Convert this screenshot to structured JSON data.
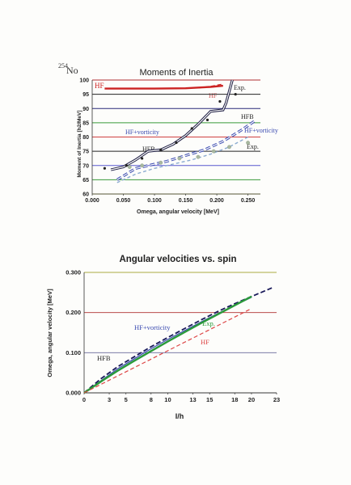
{
  "nucleus_label": {
    "mass": "254",
    "symbol": "No"
  },
  "chart_data": [
    {
      "type": "line",
      "title": "Moments of Inertia",
      "xlabel": "Omega, angular velocity [MeV]",
      "ylabel": "Moment of Inertia [h2/MeV]",
      "xlim": [
        0.0,
        0.27
      ],
      "ylim": [
        60,
        100
      ],
      "xticks": [
        "0.000",
        "0.050",
        "0.100",
        "0.150",
        "0.200",
        "0.250"
      ],
      "yticks": [
        "60",
        "65",
        "70",
        "75",
        "80",
        "85",
        "90",
        "95",
        "100"
      ],
      "gridline_colors": [
        "#c8c840",
        "#3a9a3a",
        "#5a5ad0",
        "#222222",
        "#d04040",
        "#3a9a3a",
        "#2a2a7a",
        "#222222",
        "#b03030"
      ],
      "series": [
        {
          "name": "HF",
          "color": "#cc2222",
          "style": "solid-thick",
          "x": [
            0.02,
            0.06,
            0.1,
            0.15,
            0.19,
            0.21
          ],
          "y": [
            97.0,
            97.0,
            97.0,
            97.1,
            97.6,
            98.0
          ]
        },
        {
          "name": "HF",
          "color": "#cc2222",
          "style": "dashed",
          "x": [
            0.17,
            0.19,
            0.21
          ],
          "y": [
            97.2,
            97.8,
            98.6
          ]
        },
        {
          "name": "HFB",
          "color": "#1a1a40",
          "style": "double",
          "x": [
            0.03,
            0.05,
            0.07,
            0.09,
            0.11,
            0.13,
            0.15,
            0.17,
            0.19,
            0.21,
            0.215,
            0.225
          ],
          "y": [
            68.5,
            69.5,
            72.0,
            75.0,
            75.5,
            77.5,
            80.5,
            84.5,
            89.0,
            89.5,
            92.0,
            100.0
          ]
        },
        {
          "name": "HF+vorticity",
          "color": "#3a4ab0",
          "style": "dashed-double",
          "x": [
            0.04,
            0.07,
            0.09,
            0.12,
            0.15,
            0.18,
            0.21,
            0.24,
            0.26
          ],
          "y": [
            65.0,
            69.0,
            70.0,
            71.5,
            73.5,
            75.5,
            78.5,
            82.5,
            85.5
          ]
        },
        {
          "name": "HFB",
          "color": "#8aaad0",
          "style": "dashed-light",
          "x": [
            0.04,
            0.07,
            0.1,
            0.13,
            0.16,
            0.19,
            0.22,
            0.25
          ],
          "y": [
            64.0,
            67.0,
            69.0,
            70.5,
            72.0,
            74.0,
            76.5,
            80.0
          ]
        },
        {
          "name": "Exp.",
          "color": "#222222",
          "style": "points",
          "x": [
            0.02,
            0.055,
            0.08,
            0.11,
            0.135,
            0.16,
            0.185,
            0.205,
            0.23
          ],
          "y": [
            69.0,
            70.0,
            72.5,
            75.5,
            78.0,
            83.0,
            86.0,
            92.5,
            95.0
          ]
        },
        {
          "name": "Exp.",
          "color": "#a8b8a0",
          "style": "points-light",
          "x": [
            0.06,
            0.08,
            0.11,
            0.14,
            0.17,
            0.195,
            0.22,
            0.25
          ],
          "y": [
            69.5,
            70.0,
            71.0,
            72.5,
            73.0,
            75.0,
            76.5,
            78.0
          ]
        }
      ],
      "annotations": {
        "hf_left": "HF",
        "hf_right": "HF",
        "exp_top": "Exp.",
        "hfb_right": "HFB",
        "vort_right": "HF+vorticity",
        "exp_right": "Exp.",
        "vort_mid": "HF+vorticity",
        "hfb_mid": "HFB"
      }
    },
    {
      "type": "line",
      "title": "Angular velocities vs. spin",
      "xlabel": "I/h",
      "ylabel": "Omega, angular velocity [MeV]",
      "xlim": [
        0,
        23
      ],
      "ylim": [
        0.0,
        0.3
      ],
      "xticks": [
        "0",
        "3",
        "5",
        "8",
        "10",
        "13",
        "15",
        "18",
        "20",
        "23"
      ],
      "yticks": [
        "0.000",
        "0.100",
        "0.200",
        "0.300"
      ],
      "gridline_colors": [
        "#444444",
        "#6a6a9a",
        "#b03030",
        "#aaaa40"
      ],
      "series": [
        {
          "name": "HFB",
          "color": "#1a1a5a",
          "style": "dashed-dark",
          "x": [
            0,
            2,
            4,
            6,
            8,
            10,
            12,
            14,
            16,
            18,
            20,
            22.5
          ],
          "y": [
            0.0,
            0.035,
            0.065,
            0.09,
            0.115,
            0.138,
            0.16,
            0.182,
            0.203,
            0.222,
            0.24,
            0.262
          ]
        },
        {
          "name": "HF+vorticity",
          "color": "#3a4ab0",
          "style": "solid",
          "x": [
            0,
            2,
            4,
            6,
            8,
            10,
            12,
            14,
            16,
            18,
            20
          ],
          "y": [
            0.0,
            0.03,
            0.06,
            0.085,
            0.11,
            0.133,
            0.155,
            0.177,
            0.198,
            0.218,
            0.238
          ]
        },
        {
          "name": "Exp.",
          "color": "#2a9a3a",
          "style": "solid-thick",
          "x": [
            0,
            2,
            4,
            6,
            8,
            10,
            12,
            14,
            16,
            18,
            20
          ],
          "y": [
            0.0,
            0.028,
            0.055,
            0.08,
            0.104,
            0.128,
            0.151,
            0.174,
            0.196,
            0.218,
            0.24
          ]
        },
        {
          "name": "HF",
          "color": "#dd4444",
          "style": "dashed",
          "x": [
            0,
            4,
            8,
            12,
            16,
            20
          ],
          "y": [
            0.0,
            0.042,
            0.084,
            0.126,
            0.168,
            0.21
          ]
        }
      ],
      "annotations": {
        "hfb": "HFB",
        "vort": "HF+vorticity",
        "exp": "Exp.",
        "hf": "HF"
      }
    }
  ]
}
